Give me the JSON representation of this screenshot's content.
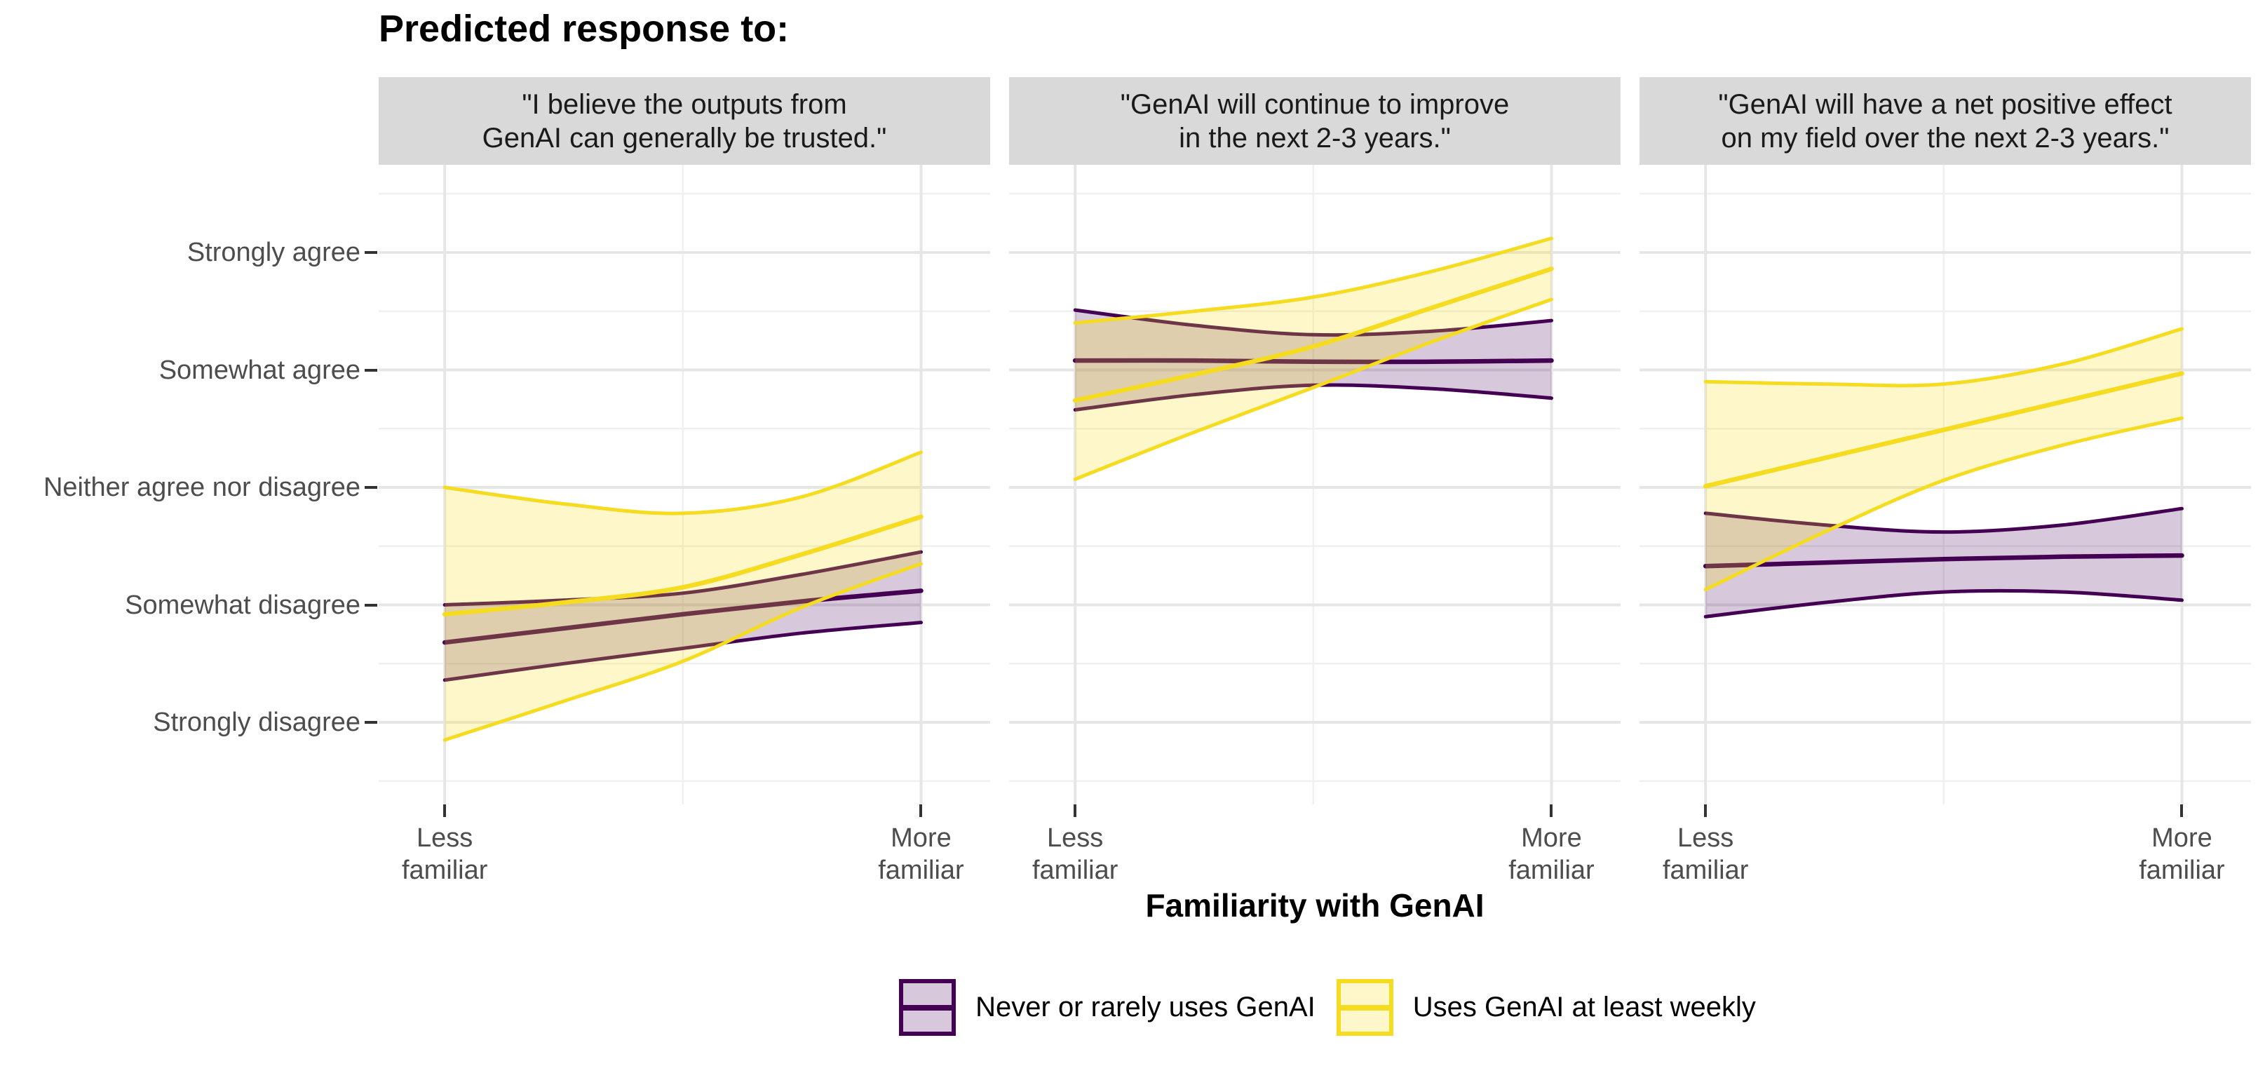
{
  "chart_data": {
    "type": "line",
    "title": "Predicted response to:",
    "x_axis": {
      "title": "Familiarity with GenAI",
      "tick_labels": [
        "Less familiar",
        "More familiar"
      ],
      "tick_label_lines": [
        [
          "Less",
          "familiar"
        ],
        [
          "More",
          "familiar"
        ]
      ],
      "range": [
        0,
        1
      ]
    },
    "y_axis": {
      "categories": [
        "Strongly disagree",
        "Somewhat disagree",
        "Neither agree nor disagree",
        "Somewhat agree",
        "Strongly agree"
      ],
      "scale_note": "ordinal 1 = Strongly disagree ... 5 = Strongly agree",
      "ylim": [
        0.3,
        5.75
      ]
    },
    "legend": {
      "position": "bottom",
      "items": [
        {
          "label": "Never or rarely uses GenAI",
          "line_color": "#440154",
          "fill_color": "rgba(68,1,84,0.21)"
        },
        {
          "label": "Uses GenAI at least weekly",
          "line_color": "#F5DC20",
          "fill_color": "rgba(245,220,32,0.24)"
        }
      ]
    },
    "x_samples": [
      0,
      0.25,
      0.5,
      0.75,
      1
    ],
    "facets": [
      {
        "title": "\"I believe the outputs from GenAI can generally be trusted.\"",
        "title_lines": [
          "\"I believe the outputs from",
          "GenAI can generally be trusted.\""
        ],
        "series": [
          {
            "group": "Never or rarely uses GenAI",
            "fit": [
              1.68,
              1.8,
              1.92,
              2.03,
              2.12
            ],
            "upper": [
              2.0,
              2.04,
              2.1,
              2.26,
              2.45
            ],
            "lower": [
              1.36,
              1.5,
              1.63,
              1.76,
              1.85
            ]
          },
          {
            "group": "Uses GenAI at least weekly",
            "fit": [
              1.92,
              2.02,
              2.15,
              2.43,
              2.75
            ],
            "upper": [
              3.0,
              2.86,
              2.78,
              2.92,
              3.3
            ],
            "lower": [
              0.85,
              1.18,
              1.52,
              1.98,
              2.35
            ]
          }
        ]
      },
      {
        "title": "\"GenAI will continue to improve in the next 2-3 years.\"",
        "title_lines": [
          "\"GenAI will continue to improve",
          "in the next 2-3 years.\""
        ],
        "series": [
          {
            "group": "Never or rarely uses GenAI",
            "fit": [
              4.08,
              4.08,
              4.07,
              4.07,
              4.08
            ],
            "upper": [
              4.51,
              4.38,
              4.3,
              4.33,
              4.42
            ],
            "lower": [
              3.66,
              3.79,
              3.87,
              3.84,
              3.76
            ]
          },
          {
            "group": "Uses GenAI at least weekly",
            "fit": [
              3.74,
              3.96,
              4.2,
              4.53,
              4.86
            ],
            "upper": [
              4.4,
              4.5,
              4.62,
              4.84,
              5.12
            ],
            "lower": [
              3.07,
              3.47,
              3.85,
              4.24,
              4.6
            ]
          }
        ]
      },
      {
        "title": "\"GenAI will have a net positive effect on my field over the next 2-3 years.\"",
        "title_lines": [
          "\"GenAI will have a net positive effect",
          "on my field over the next 2-3 years.\""
        ],
        "series": [
          {
            "group": "Never or rarely uses GenAI",
            "fit": [
              2.33,
              2.36,
              2.39,
              2.41,
              2.42
            ],
            "upper": [
              2.78,
              2.68,
              2.62,
              2.68,
              2.82
            ],
            "lower": [
              1.9,
              2.02,
              2.11,
              2.11,
              2.04
            ]
          },
          {
            "group": "Uses GenAI at least weekly",
            "fit": [
              3.01,
              3.25,
              3.49,
              3.73,
              3.97
            ],
            "upper": [
              3.9,
              3.88,
              3.88,
              4.05,
              4.35
            ],
            "lower": [
              2.13,
              2.62,
              3.06,
              3.36,
              3.59
            ]
          }
        ]
      }
    ],
    "style": {
      "background": "#FFFFFF",
      "strip_bg": "#D9D9D9",
      "strip_text": "#1A1A1A",
      "grid_major": "#E6E6E6",
      "grid_minor": "#F0F0F0",
      "tick_mark": "#333333",
      "tick_label": "#4D4D4D",
      "title_color": "#000000"
    },
    "layout_hints": {
      "grid": "major and minor, light gray on white",
      "facets": 3,
      "ribbons": "confidence bands around fitted lines",
      "legend_position": "bottom center"
    }
  }
}
